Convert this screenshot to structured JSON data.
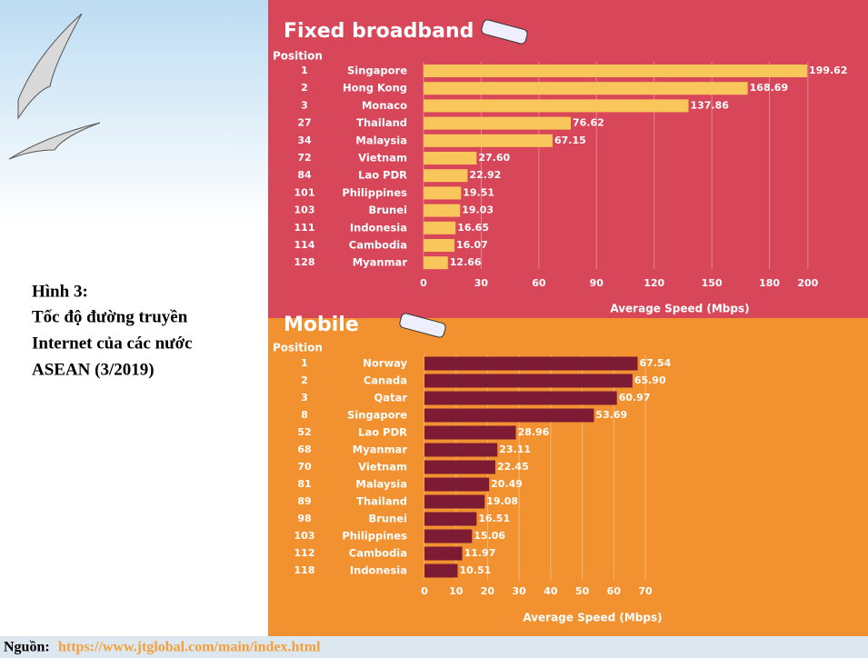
{
  "caption": [
    "Hình 3:",
    "Tốc độ đường truyền",
    "Internet của các nước",
    "ASEAN (3/2019)"
  ],
  "source_label": "Nguồn:",
  "source_url": "https://www.jtglobal.com/main/index.html",
  "chart_data": [
    {
      "type": "hbar",
      "title": "Fixed broadband",
      "position_header": "Position",
      "positions": [
        "1",
        "2",
        "3",
        "27",
        "34",
        "72",
        "84",
        "101",
        "103",
        "111",
        "114",
        "128"
      ],
      "categories": [
        "Singapore",
        "Hong Kong",
        "Monaco",
        "Thailand",
        "Malaysia",
        "Vietnam",
        "Lao PDR",
        "Philippines",
        "Brunei",
        "Indonesia",
        "Cambodia",
        "Myanmar"
      ],
      "values": [
        199.62,
        168.69,
        137.86,
        76.62,
        67.15,
        27.6,
        22.92,
        19.51,
        19.03,
        16.65,
        16.07,
        12.66
      ],
      "value_labels": [
        "199.62",
        "168.69",
        "137.86",
        "76.62",
        "67.15",
        "27.60",
        "22.92",
        "19.51",
        "19.03",
        "16.65",
        "16.07",
        "12.66"
      ],
      "color": "#f9c65c",
      "background": "#d8465a",
      "xlim": [
        0,
        210
      ],
      "xticks": [
        0,
        30,
        60,
        90,
        120,
        150,
        180,
        200
      ],
      "grid": true,
      "xlabel": "Average Speed (Mbps)"
    },
    {
      "type": "hbar",
      "title": "Mobile",
      "position_header": "Position",
      "positions": [
        "1",
        "2",
        "3",
        "8",
        "52",
        "68",
        "70",
        "81",
        "89",
        "98",
        "103",
        "112",
        "118"
      ],
      "categories": [
        "Norway",
        "Canada",
        "Qatar",
        "Singapore",
        "Lao PDR",
        "Myanmar",
        "Vietnam",
        "Malaysia",
        "Thailand",
        "Brunei",
        "Philippines",
        "Cambodia",
        "Indonesia"
      ],
      "values": [
        67.54,
        65.9,
        60.97,
        53.69,
        28.96,
        23.11,
        22.45,
        20.49,
        19.08,
        16.51,
        15.06,
        11.97,
        10.51
      ],
      "value_labels": [
        "67.54",
        "65.90",
        "60.97",
        "53.69",
        "28.96",
        "23.11",
        "22.45",
        "20.49",
        "19.08",
        "16.51",
        "15.06",
        "11.97",
        "10.51"
      ],
      "color": "#7c1b33",
      "background": "#f2912f",
      "xlim": [
        0,
        72
      ],
      "xticks": [
        0,
        10,
        20,
        30,
        40,
        50,
        60,
        70
      ],
      "grid": true,
      "xlabel": "Average Speed (Mbps)"
    }
  ]
}
